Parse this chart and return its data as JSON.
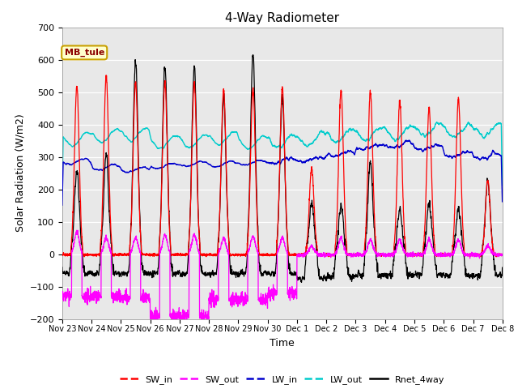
{
  "title": "4-Way Radiometer",
  "xlabel": "Time",
  "ylabel": "Solar Radiation (W/m2)",
  "ylim": [
    -200,
    700
  ],
  "n_days": 15,
  "annotation_text": "MB_tule",
  "annotation_text_color": "#8B0000",
  "annotation_bg": "#FFFFCC",
  "annotation_edge": "#C8A000",
  "plot_bg": "#E8E8E8",
  "fig_bg": "#FFFFFF",
  "colors": {
    "SW_in": "#FF0000",
    "SW_out": "#FF00FF",
    "LW_in": "#0000CD",
    "LW_out": "#00CCCC",
    "Rnet_4way": "#000000"
  },
  "tick_labels": [
    "Nov 23",
    "Nov 24",
    "Nov 25",
    "Nov 26",
    "Nov 27",
    "Nov 28",
    "Nov 29",
    "Nov 30",
    "Dec 1",
    "Dec 2",
    "Dec 3",
    "Dec 4",
    "Dec 5",
    "Dec 6",
    "Dec 7",
    "Dec 8"
  ],
  "legend_labels": [
    "SW_in",
    "SW_out",
    "LW_in",
    "LW_out",
    "Rnet_4way"
  ],
  "yticks": [
    -200,
    -100,
    0,
    100,
    200,
    300,
    400,
    500,
    600,
    700
  ],
  "sw_in_peaks": [
    520,
    550,
    530,
    530,
    530,
    505,
    510,
    515,
    265,
    505,
    500,
    470,
    450,
    480,
    225
  ],
  "sw_out_day_pk": [
    70,
    50,
    50,
    60,
    60,
    50,
    55,
    50,
    25,
    50,
    45,
    45,
    45,
    45,
    25
  ],
  "sw_out_night": [
    -130,
    -130,
    -135,
    -190,
    -190,
    -140,
    -140,
    -120,
    0,
    0,
    0,
    0,
    0,
    0,
    0
  ],
  "lw_in_base": [
    285,
    268,
    260,
    272,
    278,
    278,
    282,
    288,
    292,
    310,
    330,
    338,
    328,
    308,
    303
  ],
  "lw_out_base": [
    355,
    365,
    370,
    345,
    348,
    358,
    344,
    348,
    355,
    365,
    372,
    372,
    385,
    380,
    382
  ],
  "rnet_day_peaks": [
    260,
    310,
    600,
    580,
    580,
    490,
    620,
    490,
    160,
    150,
    290,
    140,
    155,
    145,
    230
  ],
  "rnet_night_base": [
    -60,
    -60,
    -60,
    -60,
    -60,
    -60,
    -60,
    -60,
    -75,
    -70,
    -65,
    -65,
    -65,
    -65,
    -65
  ]
}
